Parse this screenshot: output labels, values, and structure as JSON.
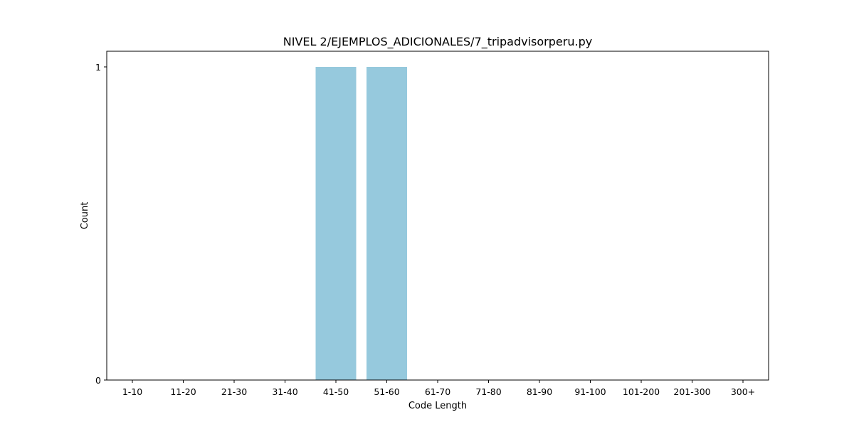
{
  "chart_data": {
    "type": "bar",
    "title": "NIVEL 2/EJEMPLOS_ADICIONALES/7_tripadvisorperu.py",
    "xlabel": "Code Length",
    "ylabel": "Count",
    "categories": [
      "1-10",
      "11-20",
      "21-30",
      "31-40",
      "41-50",
      "51-60",
      "61-70",
      "71-80",
      "81-90",
      "91-100",
      "101-200",
      "201-300",
      "300+"
    ],
    "values": [
      0,
      0,
      0,
      0,
      1,
      1,
      0,
      0,
      0,
      0,
      0,
      0,
      0
    ],
    "ylim": [
      0,
      1
    ],
    "yticks": [
      "0",
      "1"
    ],
    "bar_color": "#96c9dd",
    "grid": false,
    "legend": "none"
  }
}
